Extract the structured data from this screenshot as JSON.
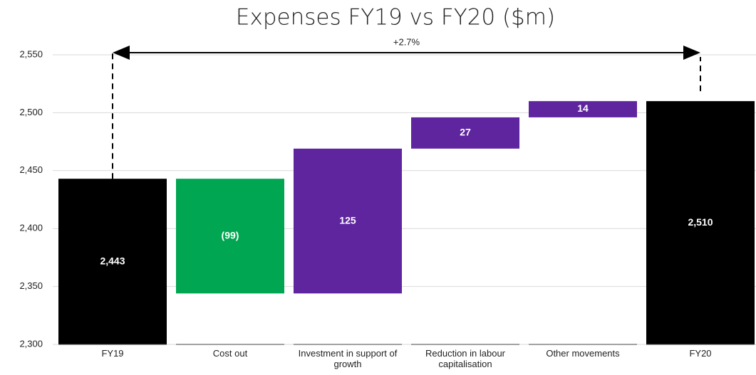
{
  "chart_data": {
    "type": "waterfall",
    "title": "Expenses FY19 vs FY20 ($m)",
    "categories": [
      "FY19",
      "Cost out",
      "Investment in support of growth",
      "Reduction in labour capitalisation",
      "Other movements",
      "FY20"
    ],
    "values": [
      2443,
      -99,
      125,
      27,
      14,
      2510
    ],
    "value_labels": [
      "2,443",
      "(99)",
      "125",
      "27",
      "14",
      "2,510"
    ],
    "measures": [
      "total",
      "relative",
      "relative",
      "relative",
      "relative",
      "total"
    ],
    "colors": [
      "#000000",
      "#00a651",
      "#5f259f",
      "#5f259f",
      "#5f259f",
      "#000000"
    ],
    "annotation": "+2.7%",
    "ylim": [
      2300,
      2550
    ],
    "yticks": [
      {
        "value": 2300,
        "label": "2,300"
      },
      {
        "value": 2350,
        "label": "2,350"
      },
      {
        "value": 2400,
        "label": "2,400"
      },
      {
        "value": 2450,
        "label": "2,450"
      },
      {
        "value": 2500,
        "label": "2,500"
      },
      {
        "value": 2550,
        "label": "2,550"
      }
    ],
    "grid": true
  }
}
